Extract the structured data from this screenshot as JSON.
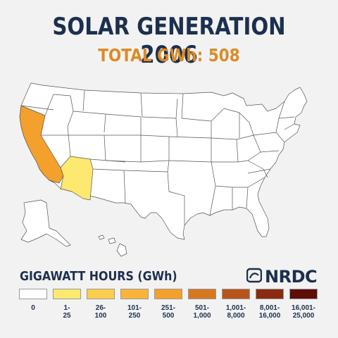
{
  "header": {
    "title": "SOLAR GENERATION 2006",
    "subtitle": "TOTAL GWh: 508"
  },
  "legend": {
    "title": "GIGAWATT HOURS (GWh)",
    "bins": [
      {
        "range": "0",
        "color": "#ffffff"
      },
      {
        "range": "1-\n25",
        "color": "#fde870"
      },
      {
        "range": "26-\n100",
        "color": "#fbcd4d"
      },
      {
        "range": "101-\n250",
        "color": "#f8b43a"
      },
      {
        "range": "251-\n500",
        "color": "#f3a02c"
      },
      {
        "range": "501-\n1,000",
        "color": "#d5781f"
      },
      {
        "range": "1,001-\n8,000",
        "color": "#b8541a"
      },
      {
        "range": "8,001-\n16,000",
        "color": "#8a2b0f"
      },
      {
        "range": "16,001-\n25,000",
        "color": "#5e0d08"
      }
    ]
  },
  "logo": {
    "text": "NRDC",
    "icon": "nrdc-logo-icon"
  },
  "map": {
    "states": [
      {
        "name": "California",
        "bin": "251-500",
        "color": "#f3a02c"
      },
      {
        "name": "Arizona",
        "bin": "1-25",
        "color": "#fde870"
      }
    ],
    "default_color": "#ffffff",
    "border_color": "#555555"
  }
}
